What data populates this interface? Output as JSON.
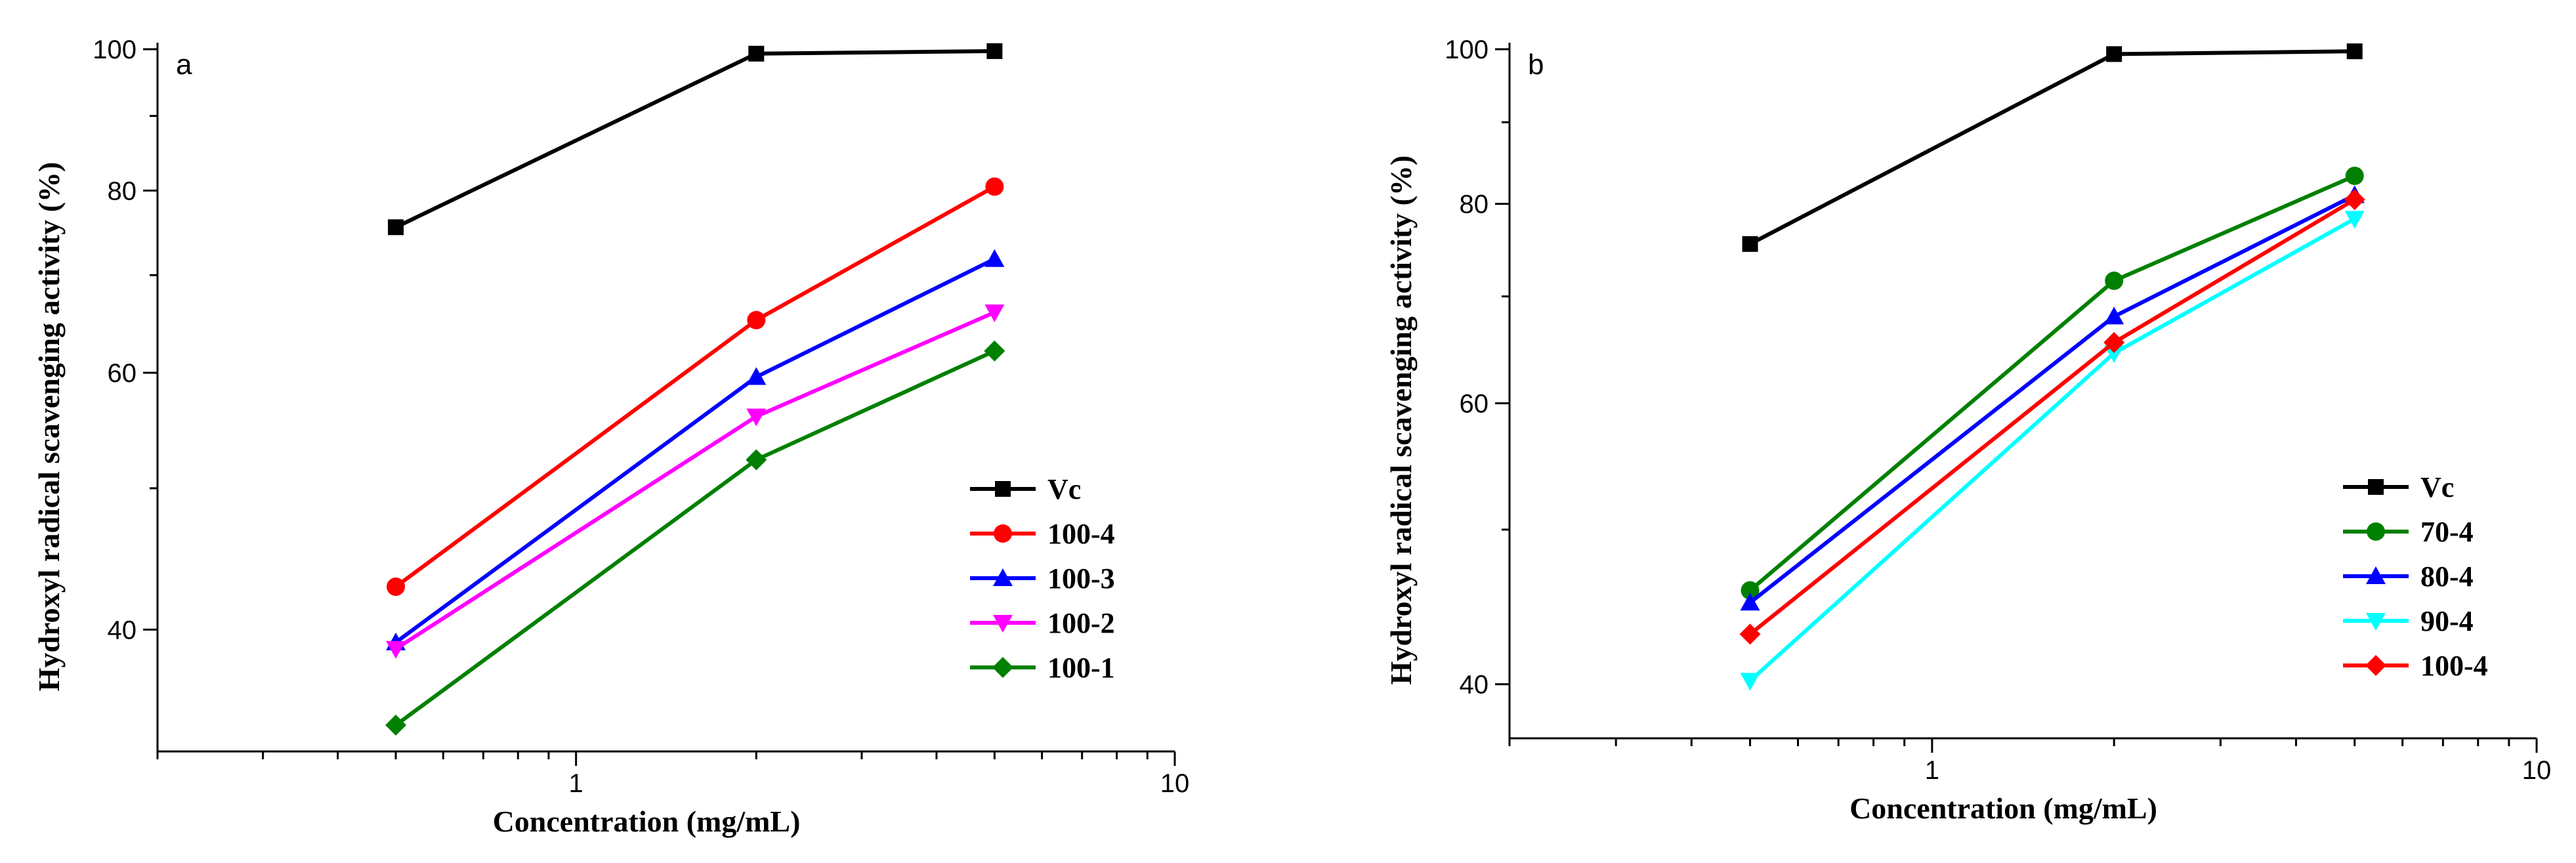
{
  "colors": {
    "black": "#000000",
    "red": "#ff0000",
    "blue": "#0000ff",
    "magenta": "#ff00ff",
    "green": "#008000",
    "cyan": "#00ffff"
  },
  "chart_data": [
    {
      "type": "line",
      "panel_label": "a",
      "xlabel": "Concentration (mg/mL)",
      "ylabel": "Hydroxyl radical scavenging activity (%)",
      "x_scale": "log",
      "y_scale": "log",
      "xlim": [
        0.2,
        10
      ],
      "ylim": [
        33,
        100
      ],
      "x_ticks": [
        1,
        10
      ],
      "x_tick_labels": [
        "1",
        "10"
      ],
      "y_ticks": [
        40,
        60,
        80,
        100
      ],
      "y_tick_labels": [
        "40",
        "60",
        "80",
        "100"
      ],
      "x": [
        0.5,
        2,
        5
      ],
      "legend_position": "right",
      "series": [
        {
          "name": "Vc",
          "values": [
            75.5,
            99.3,
            99.7
          ],
          "color": "black",
          "marker": "square"
        },
        {
          "name": "100-4",
          "values": [
            42.8,
            65.2,
            80.5
          ],
          "color": "red",
          "marker": "circle"
        },
        {
          "name": "100-3",
          "values": [
            39.2,
            59.6,
            71.8
          ],
          "color": "blue",
          "marker": "triangle-up"
        },
        {
          "name": "100-2",
          "values": [
            38.8,
            56.0,
            66.0
          ],
          "color": "magenta",
          "marker": "triangle-down"
        },
        {
          "name": "100-1",
          "values": [
            34.4,
            52.3,
            62.1
          ],
          "color": "green",
          "marker": "diamond"
        }
      ]
    },
    {
      "type": "line",
      "panel_label": "b",
      "xlabel": "Concentration (mg/mL)",
      "ylabel": "Hydroxyl radical scavenging activity (%)",
      "x_scale": "log",
      "y_scale": "log",
      "xlim": [
        0.2,
        10
      ],
      "ylim": [
        37,
        100
      ],
      "x_ticks": [
        1,
        10
      ],
      "x_tick_labels": [
        "1",
        "10"
      ],
      "y_ticks": [
        40,
        60,
        80,
        100
      ],
      "y_tick_labels": [
        "40",
        "60",
        "80",
        "100"
      ],
      "x": [
        0.5,
        2,
        5
      ],
      "legend_position": "right",
      "series": [
        {
          "name": "Vc",
          "values": [
            75.5,
            99.3,
            99.7
          ],
          "color": "black",
          "marker": "square"
        },
        {
          "name": "70-4",
          "values": [
            45.8,
            71.6,
            83.3
          ],
          "color": "green",
          "marker": "circle"
        },
        {
          "name": "80-4",
          "values": [
            45.0,
            68.0,
            81.0
          ],
          "color": "blue",
          "marker": "triangle-up"
        },
        {
          "name": "90-4",
          "values": [
            40.2,
            64.5,
            78.3
          ],
          "color": "cyan",
          "marker": "triangle-down"
        },
        {
          "name": "100-4",
          "values": [
            43.0,
            65.5,
            80.5
          ],
          "color": "red",
          "marker": "diamond"
        }
      ]
    }
  ]
}
